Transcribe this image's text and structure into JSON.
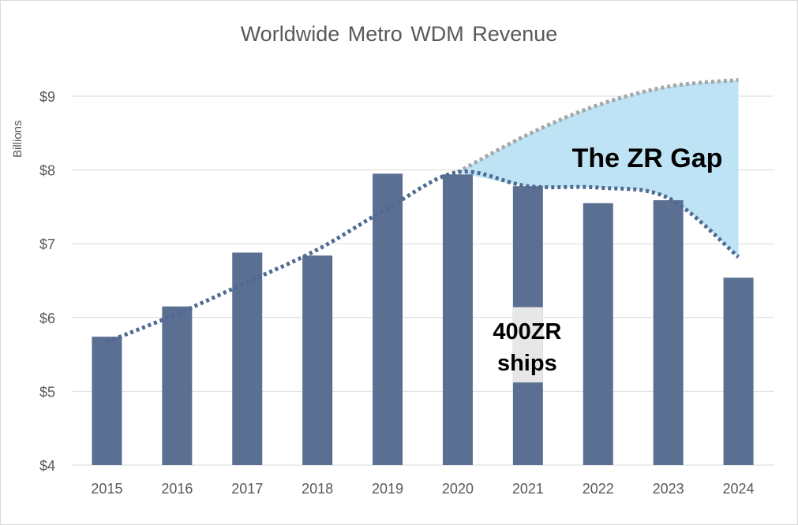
{
  "chart_data": {
    "type": "bar",
    "title": "Worldwide Metro WDM Revenue",
    "ylabel": "Billions",
    "xlabel": "",
    "categories": [
      "2015",
      "2016",
      "2017",
      "2018",
      "2019",
      "2020",
      "2021",
      "2022",
      "2023",
      "2024"
    ],
    "values": [
      5.74,
      6.15,
      6.88,
      6.84,
      7.95,
      7.94,
      7.78,
      7.55,
      7.59,
      6.54
    ],
    "ylim": [
      4,
      9.5
    ],
    "y_ticks": [
      4,
      5,
      6,
      7,
      8,
      9
    ],
    "y_tick_labels": [
      "$4",
      "$5",
      "$6",
      "$7",
      "$8",
      "$9"
    ],
    "grid": true,
    "colors": {
      "bar": "#5b6f92",
      "trend_line": "#4f6a91",
      "projection_line": "#a6a6a6",
      "gap_fill": "#bde3f5",
      "grid": "#d9d9d9"
    },
    "trend_line": {
      "x": [
        "2015",
        "2016",
        "2017",
        "2018",
        "2019",
        "2020",
        "2021",
        "2022",
        "2023",
        "2024"
      ],
      "y": [
        5.67,
        6.05,
        6.48,
        6.92,
        7.48,
        7.97,
        7.78,
        7.76,
        7.62,
        6.82
      ]
    },
    "projection_line": {
      "x": [
        "2020",
        "2021",
        "2022",
        "2023",
        "2024"
      ],
      "y": [
        7.97,
        8.48,
        8.88,
        9.13,
        9.22
      ]
    },
    "annotations": {
      "gap_label": "The ZR Gap",
      "ship_label_line1": "400ZR",
      "ship_label_line2": "ships"
    }
  }
}
